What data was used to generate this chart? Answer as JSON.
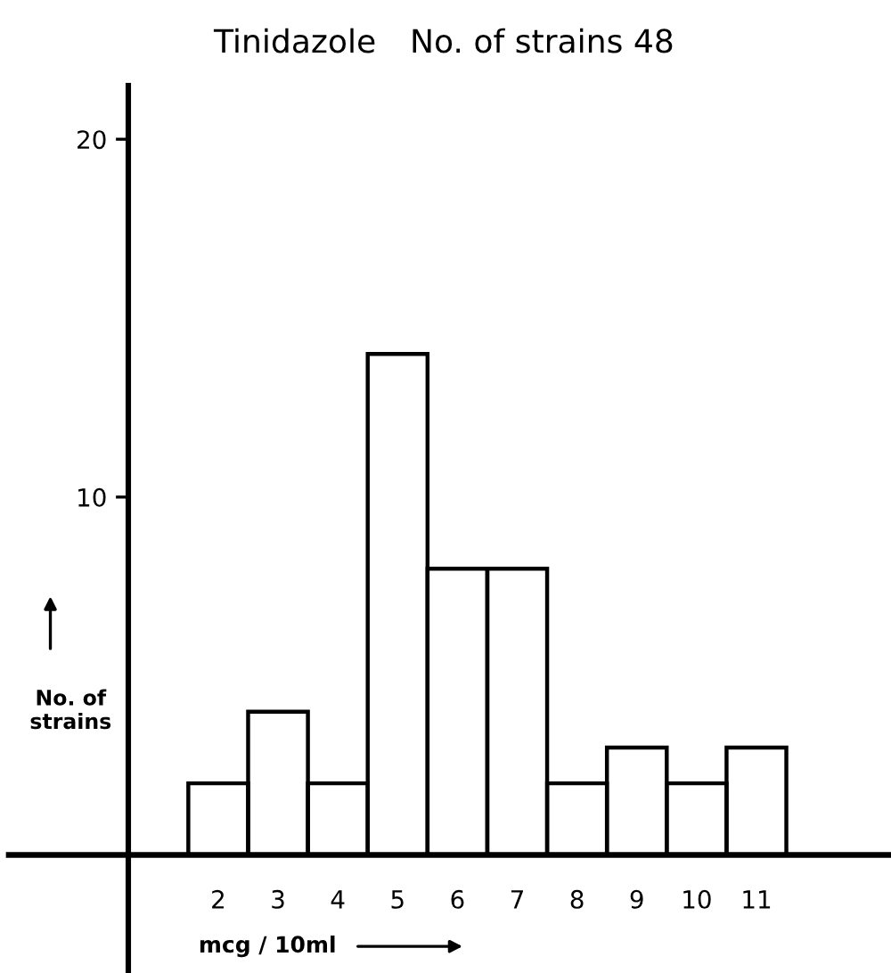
{
  "chart_data": {
    "type": "histogram",
    "title": "Tinidazole",
    "subtitle": "No. of strains 48",
    "xlabel": "mcg / 10ml",
    "ylabel": "No. of strains",
    "bins": [
      1.5,
      2.5,
      3.5,
      4.5,
      5.5,
      6.5,
      7.5,
      8.5,
      9.5,
      10.5,
      11.5
    ],
    "values": [
      2,
      4,
      2,
      14,
      8,
      8,
      2,
      3,
      2,
      3
    ],
    "color": "#000000",
    "xlim": [
      -1.5,
      13.25
    ],
    "xticks": [
      2,
      3,
      4,
      5,
      6,
      7,
      8,
      9,
      10,
      11
    ],
    "ylim": [
      -3.3,
      21.5
    ],
    "yticks": [
      10,
      20
    ],
    "grid": false,
    "legend": false
  }
}
